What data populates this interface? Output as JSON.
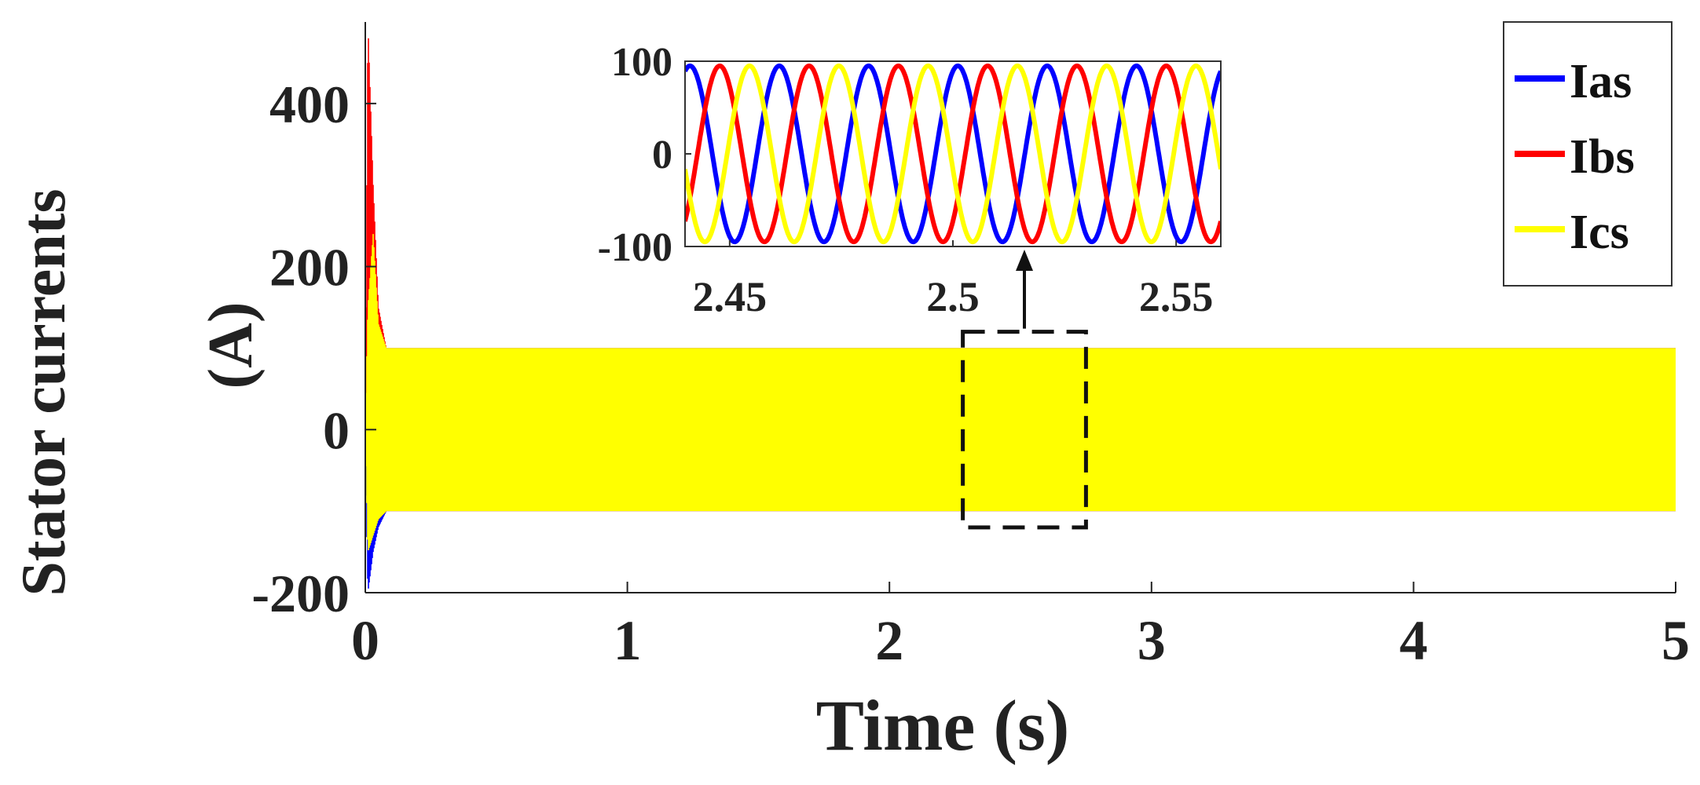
{
  "chart_data": [
    {
      "type": "line",
      "role": "main",
      "xlabel": "Time (s)",
      "ylabel_lines": [
        "Stator currents",
        "(A)"
      ],
      "xlim": [
        0,
        5
      ],
      "ylim": [
        -200,
        500
      ],
      "xticks": [
        0,
        1,
        2,
        3,
        4,
        5
      ],
      "yticks": [
        -200,
        0,
        200,
        400
      ],
      "grid": false,
      "legend": "top-right",
      "series": [
        {
          "name": "Ias",
          "color": "#0000ff",
          "x": [
            0,
            0.01,
            0.03,
            0.05,
            0.08,
            0.1,
            1,
            2,
            3,
            4,
            5
          ],
          "envelope_min": [
            -30,
            -200,
            -150,
            -120,
            -100,
            -100,
            -100,
            -100,
            -100,
            -100,
            -100
          ],
          "envelope_max": [
            0,
            0,
            150,
            120,
            100,
            100,
            100,
            100,
            100,
            100,
            100
          ]
        },
        {
          "name": "Ibs",
          "color": "#ff0000",
          "x": [
            0,
            0.01,
            0.03,
            0.05,
            0.08,
            0.1,
            1,
            2,
            3,
            4,
            5
          ],
          "envelope_min": [
            0,
            -50,
            -120,
            -110,
            -100,
            -100,
            -100,
            -100,
            -100,
            -100,
            -100
          ],
          "envelope_max": [
            0,
            500,
            300,
            150,
            100,
            100,
            100,
            100,
            100,
            100,
            100
          ]
        },
        {
          "name": "Ics",
          "color": "#ffff00",
          "x": [
            0,
            0.01,
            0.03,
            0.05,
            0.08,
            0.1,
            1,
            2,
            3,
            4,
            5
          ],
          "envelope_min": [
            0,
            -150,
            -130,
            -110,
            -100,
            -100,
            -100,
            -100,
            -100,
            -100,
            -100
          ],
          "envelope_max": [
            0,
            150,
            240,
            130,
            100,
            100,
            100,
            100,
            100,
            100,
            100
          ]
        }
      ],
      "zoom_box": {
        "x": [
          2.28,
          2.75
        ],
        "y": [
          -120,
          120
        ]
      }
    },
    {
      "type": "line",
      "role": "inset",
      "xlim": [
        2.44,
        2.56
      ],
      "ylim": [
        -100,
        100
      ],
      "xticks": [
        2.45,
        2.5,
        2.55
      ],
      "xtick_labels": [
        "2.45",
        "2.5",
        "2.55"
      ],
      "yticks": [
        -100,
        0,
        100
      ],
      "amplitude": 95,
      "frequency_hz": 50,
      "series": [
        {
          "name": "Ias",
          "color": "#0000ff",
          "phase_deg": 70
        },
        {
          "name": "Ibs",
          "color": "#ff0000",
          "phase_deg": -50
        },
        {
          "name": "Ics",
          "color": "#ffff00",
          "phase_deg": 190
        }
      ]
    }
  ]
}
